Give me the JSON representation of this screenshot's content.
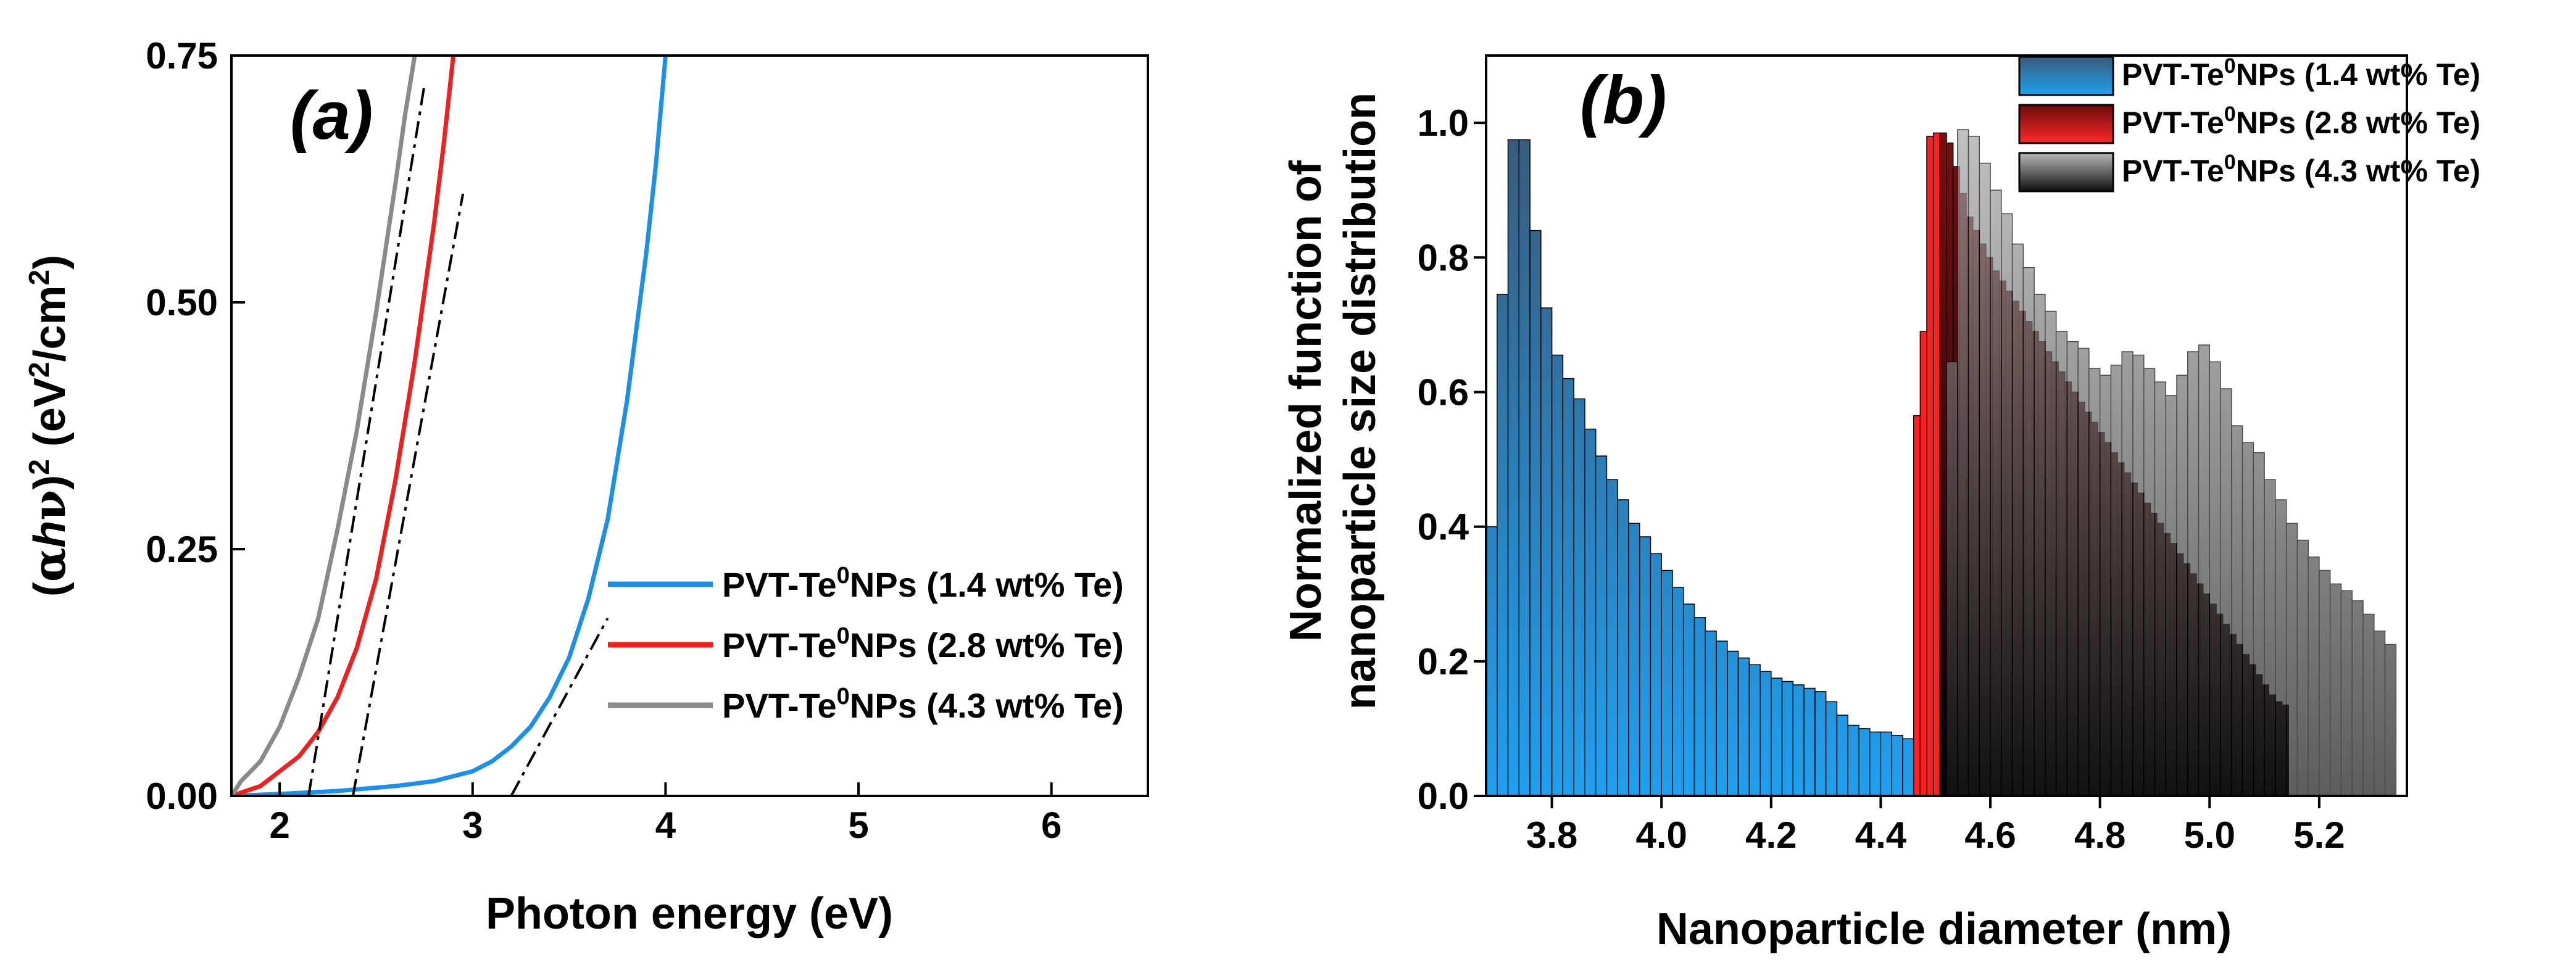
{
  "chart_data": [
    {
      "panel": "(a)",
      "type": "line",
      "title": "",
      "xlabel": "Photon energy (eV)",
      "ylabel_parts": {
        "open": "(",
        "alpha": "α",
        "h": "h",
        "nu": "ν",
        "close": ")",
        "sup": "2",
        "units_open": " (eV",
        "units_sup": "2",
        "units_close": "/cm",
        "units_sup2": "2",
        "units_end": ")"
      },
      "xlim": [
        1.75,
        6.5
      ],
      "ylim": [
        0,
        0.75
      ],
      "xticks": [
        2,
        3,
        4,
        5,
        6
      ],
      "xtick_labels": [
        "2",
        "3",
        "4",
        "5",
        "6"
      ],
      "yticks": [
        0,
        0.25,
        0.5,
        0.75
      ],
      "ytick_labels": [
        "0.00",
        "0.25",
        "0.50",
        "0.75"
      ],
      "legend_position": "lower-right",
      "series": [
        {
          "name": "PVT-Te0NPs (1.4 wt% Te)",
          "legend_main": "PVT-Te",
          "legend_sup": "0",
          "legend_rest": "NPs (1.4 wt% Te)",
          "color": "#1e8fe8",
          "x": [
            1.75,
            2.0,
            2.3,
            2.6,
            2.8,
            3.0,
            3.1,
            3.2,
            3.3,
            3.4,
            3.5,
            3.6,
            3.7,
            3.8,
            3.9,
            3.95,
            4.0
          ],
          "y": [
            0.0,
            0.002,
            0.005,
            0.01,
            0.015,
            0.025,
            0.035,
            0.05,
            0.07,
            0.1,
            0.14,
            0.2,
            0.28,
            0.4,
            0.55,
            0.64,
            0.75
          ]
        },
        {
          "name": "PVT-Te0NPs (2.8 wt% Te)",
          "legend_main": "PVT-Te",
          "legend_sup": "0",
          "legend_rest": "NPs (2.8 wt% Te)",
          "color": "#ee2020",
          "x": [
            1.75,
            1.9,
            2.0,
            2.1,
            2.2,
            2.3,
            2.4,
            2.5,
            2.6,
            2.7,
            2.8,
            2.85,
            2.9
          ],
          "y": [
            0.0,
            0.01,
            0.025,
            0.04,
            0.065,
            0.1,
            0.15,
            0.22,
            0.32,
            0.44,
            0.58,
            0.66,
            0.75
          ]
        },
        {
          "name": "PVT-Te0NPs (4.3 wt% Te)",
          "legend_main": "PVT-Te",
          "legend_sup": "0",
          "legend_rest": "NPs (4.3 wt% Te)",
          "color": "#8a8a8a",
          "x": [
            1.75,
            1.8,
            1.9,
            2.0,
            2.1,
            2.2,
            2.3,
            2.4,
            2.5,
            2.6,
            2.65,
            2.7
          ],
          "y": [
            0.0,
            0.015,
            0.035,
            0.07,
            0.12,
            0.18,
            0.27,
            0.37,
            0.49,
            0.62,
            0.69,
            0.75
          ]
        }
      ],
      "tangent_lines": [
        {
          "x": [
            3.2,
            3.7
          ],
          "y": [
            0.0,
            0.18
          ]
        },
        {
          "x": [
            2.38,
            2.95
          ],
          "y": [
            0.0,
            0.61
          ]
        },
        {
          "x": [
            2.15,
            2.75
          ],
          "y": [
            0.0,
            0.72
          ]
        }
      ]
    },
    {
      "panel": "(b)",
      "type": "bar",
      "title": "",
      "xlabel": "Nanoparticle diameter (nm)",
      "ylabel_lines": [
        "Normalized function of",
        "nanoparticle size distribution"
      ],
      "xlim": [
        3.68,
        5.36
      ],
      "ylim": [
        0,
        1.1
      ],
      "xticks": [
        3.8,
        4.0,
        4.2,
        4.4,
        4.6,
        4.8,
        5.0,
        5.2
      ],
      "xtick_labels": [
        "3.8",
        "4.0",
        "4.2",
        "4.4",
        "4.6",
        "4.8",
        "5.0",
        "5.2"
      ],
      "yticks": [
        0,
        0.2,
        0.4,
        0.6,
        0.8,
        1.0
      ],
      "ytick_labels": [
        "0.0",
        "0.2",
        "0.4",
        "0.6",
        "0.8",
        "1.0"
      ],
      "legend_position": "top-right",
      "series": [
        {
          "name": "PVT-Te0NPs (1.4 wt% Te)",
          "legend_main": "PVT-Te",
          "legend_sup": "0",
          "legend_rest": "NPs (1.4 wt% Te)",
          "color_top": "#3a5a7a",
          "color_bottom": "#1ea0f0",
          "bin_start": 3.68,
          "bin_width": 0.02,
          "values": [
            0.4,
            0.745,
            0.975,
            0.975,
            0.84,
            0.725,
            0.655,
            0.62,
            0.59,
            0.545,
            0.505,
            0.47,
            0.44,
            0.405,
            0.385,
            0.36,
            0.335,
            0.31,
            0.285,
            0.265,
            0.245,
            0.23,
            0.215,
            0.205,
            0.195,
            0.185,
            0.175,
            0.17,
            0.165,
            0.16,
            0.155,
            0.14,
            0.12,
            0.105,
            0.1,
            0.095,
            0.095,
            0.09,
            0.085
          ]
        },
        {
          "name": "PVT-Te0NPs (2.8 wt% Te)",
          "legend_main": "PVT-Te",
          "legend_sup": "0",
          "legend_rest": "NPs (2.8 wt% Te)",
          "color_top": "#6a0a0a",
          "color_bottom": "#ff2a2a",
          "bin_start": 4.46,
          "bin_width": 0.012,
          "values": [
            0.565,
            0.69,
            0.98,
            0.985,
            0.985,
            0.97,
            0.935,
            0.895,
            0.86,
            0.84,
            0.82,
            0.8,
            0.78,
            0.765,
            0.75,
            0.735,
            0.72,
            0.705,
            0.69,
            0.675,
            0.66,
            0.645,
            0.63,
            0.615,
            0.6,
            0.585,
            0.57,
            0.555,
            0.54,
            0.525,
            0.51,
            0.495,
            0.48,
            0.465,
            0.45,
            0.435,
            0.42,
            0.405,
            0.39,
            0.375,
            0.36,
            0.345,
            0.33,
            0.315,
            0.3,
            0.285,
            0.27,
            0.255,
            0.24,
            0.225,
            0.21,
            0.195,
            0.18,
            0.165,
            0.15,
            0.14,
            0.135
          ]
        },
        {
          "name": "PVT-Te0NPs (4.3 wt% Te)",
          "legend_main": "PVT-Te",
          "legend_sup": "0",
          "legend_rest": "NPs (4.3 wt% Te)",
          "color_top": "#b8b8b8",
          "color_bottom": "#101010",
          "bin_start": 4.52,
          "bin_width": 0.02,
          "values": [
            0.645,
            0.99,
            0.98,
            0.94,
            0.9,
            0.865,
            0.82,
            0.785,
            0.745,
            0.72,
            0.69,
            0.675,
            0.665,
            0.635,
            0.625,
            0.64,
            0.66,
            0.655,
            0.635,
            0.615,
            0.595,
            0.625,
            0.66,
            0.67,
            0.645,
            0.605,
            0.55,
            0.525,
            0.51,
            0.47,
            0.44,
            0.405,
            0.38,
            0.355,
            0.335,
            0.315,
            0.305,
            0.29,
            0.27,
            0.245,
            0.225
          ]
        }
      ]
    }
  ]
}
